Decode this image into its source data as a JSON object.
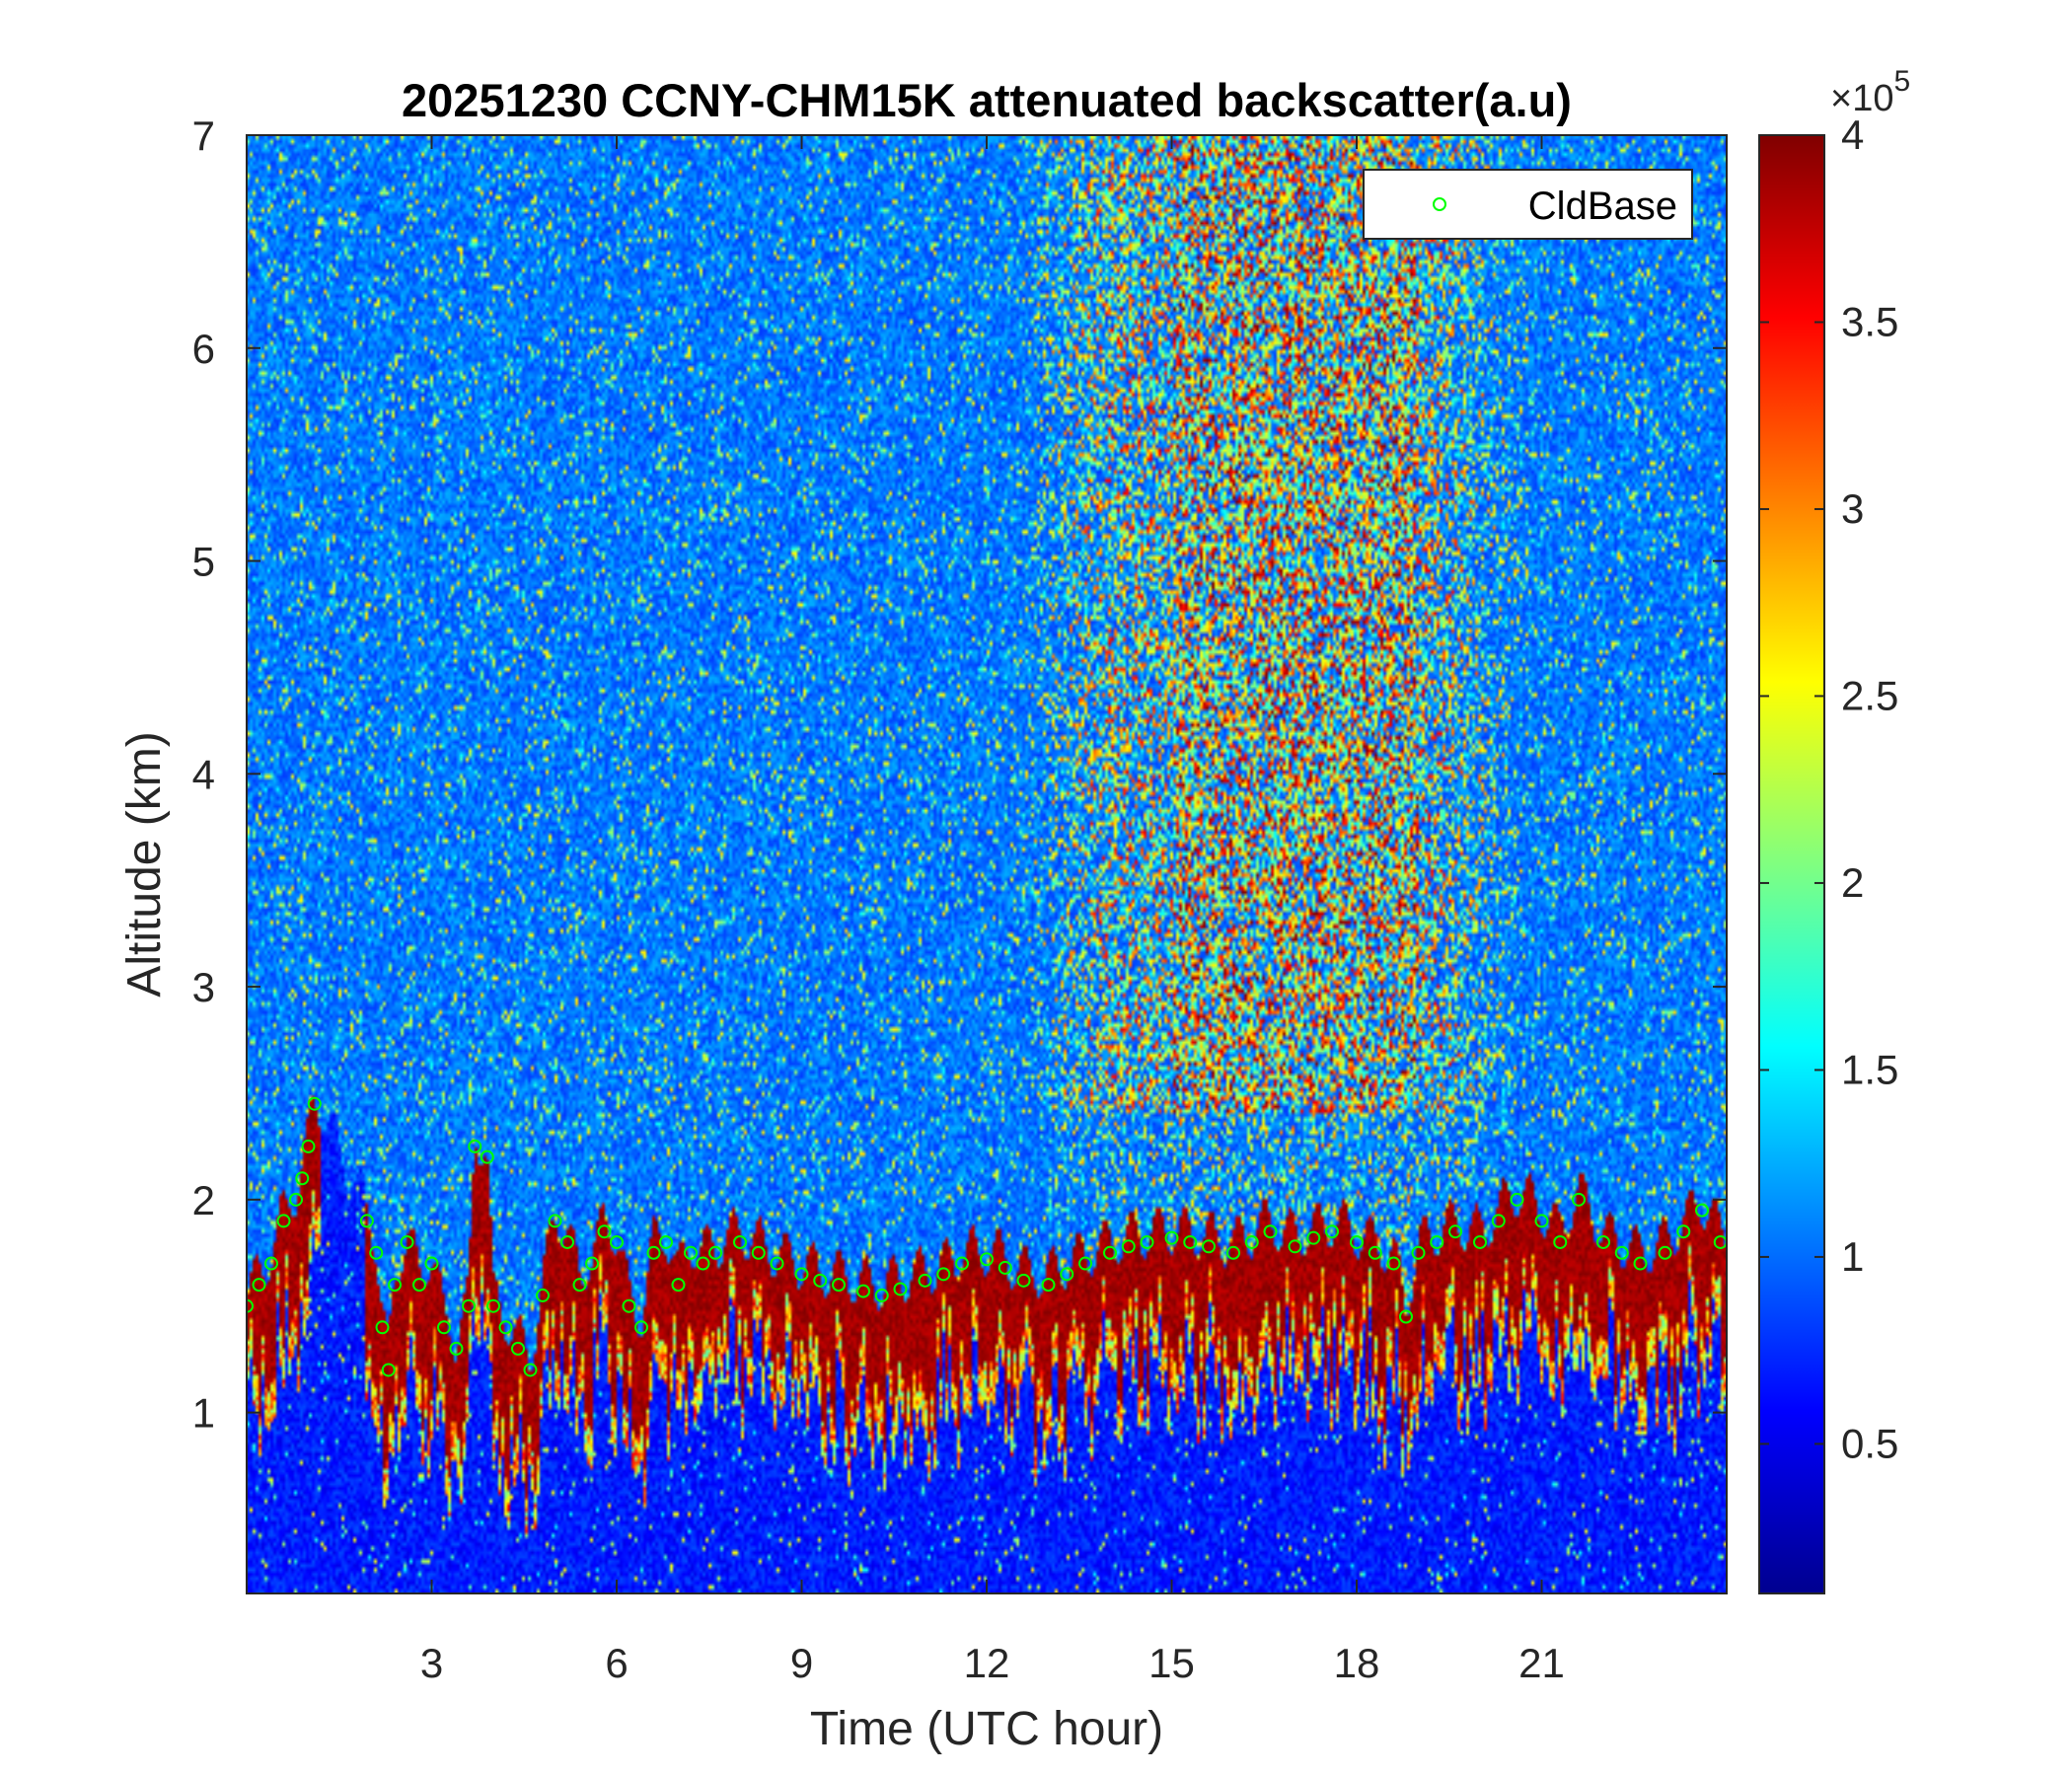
{
  "chart_data": {
    "type": "heatmap",
    "title": "20251230 CCNY-CHM15K attenuated backscatter(a.u)",
    "xlabel": "Time (UTC hour)",
    "ylabel": "Altitude (km)",
    "xlim": [
      0,
      24
    ],
    "ylim": [
      0.15,
      7
    ],
    "xticks": [
      3,
      6,
      9,
      12,
      15,
      18,
      21
    ],
    "yticks": [
      1,
      2,
      3,
      4,
      5,
      6,
      7
    ],
    "colormap": "jet",
    "colorbar": {
      "range": [
        10000,
        400000
      ],
      "ticks": [
        0.5,
        1,
        1.5,
        2,
        2.5,
        3,
        3.5,
        4
      ],
      "multiplier_base": "×10",
      "multiplier_exponent": "5"
    },
    "legend": {
      "position": "top-right",
      "entries": [
        "CldBase"
      ]
    },
    "series": [
      {
        "name": "CldBase",
        "marker": "circle-open",
        "color": "#00ff00",
        "points": [
          [
            0.0,
            1.5
          ],
          [
            0.2,
            1.6
          ],
          [
            0.4,
            1.7
          ],
          [
            0.6,
            1.9
          ],
          [
            0.8,
            2.0
          ],
          [
            0.9,
            2.1
          ],
          [
            1.0,
            2.25
          ],
          [
            1.1,
            2.45
          ],
          [
            1.95,
            1.9
          ],
          [
            2.1,
            1.75
          ],
          [
            2.2,
            1.4
          ],
          [
            2.3,
            1.2
          ],
          [
            2.4,
            1.6
          ],
          [
            2.6,
            1.8
          ],
          [
            2.8,
            1.6
          ],
          [
            3.0,
            1.7
          ],
          [
            3.2,
            1.4
          ],
          [
            3.4,
            1.3
          ],
          [
            3.6,
            1.5
          ],
          [
            3.7,
            2.25
          ],
          [
            3.9,
            2.2
          ],
          [
            4.0,
            1.5
          ],
          [
            4.2,
            1.4
          ],
          [
            4.4,
            1.3
          ],
          [
            4.6,
            1.2
          ],
          [
            4.8,
            1.55
          ],
          [
            5.0,
            1.9
          ],
          [
            5.2,
            1.8
          ],
          [
            5.4,
            1.6
          ],
          [
            5.6,
            1.7
          ],
          [
            5.8,
            1.85
          ],
          [
            6.0,
            1.8
          ],
          [
            6.2,
            1.5
          ],
          [
            6.4,
            1.4
          ],
          [
            6.6,
            1.75
          ],
          [
            6.8,
            1.8
          ],
          [
            7.0,
            1.6
          ],
          [
            7.2,
            1.75
          ],
          [
            7.4,
            1.7
          ],
          [
            7.6,
            1.75
          ],
          [
            8.0,
            1.8
          ],
          [
            8.3,
            1.75
          ],
          [
            8.6,
            1.7
          ],
          [
            9.0,
            1.65
          ],
          [
            9.3,
            1.62
          ],
          [
            9.6,
            1.6
          ],
          [
            10.0,
            1.57
          ],
          [
            10.3,
            1.55
          ],
          [
            10.6,
            1.58
          ],
          [
            11.0,
            1.62
          ],
          [
            11.3,
            1.65
          ],
          [
            11.6,
            1.7
          ],
          [
            12.0,
            1.72
          ],
          [
            12.3,
            1.68
          ],
          [
            12.6,
            1.62
          ],
          [
            13.0,
            1.6
          ],
          [
            13.3,
            1.65
          ],
          [
            13.6,
            1.7
          ],
          [
            14.0,
            1.75
          ],
          [
            14.3,
            1.78
          ],
          [
            14.6,
            1.8
          ],
          [
            15.0,
            1.82
          ],
          [
            15.3,
            1.8
          ],
          [
            15.6,
            1.78
          ],
          [
            16.0,
            1.75
          ],
          [
            16.3,
            1.8
          ],
          [
            16.6,
            1.85
          ],
          [
            17.0,
            1.78
          ],
          [
            17.3,
            1.82
          ],
          [
            17.6,
            1.85
          ],
          [
            18.0,
            1.8
          ],
          [
            18.3,
            1.75
          ],
          [
            18.6,
            1.7
          ],
          [
            18.8,
            1.45
          ],
          [
            19.0,
            1.75
          ],
          [
            19.3,
            1.8
          ],
          [
            19.6,
            1.85
          ],
          [
            20.0,
            1.8
          ],
          [
            20.3,
            1.9
          ],
          [
            20.6,
            2.0
          ],
          [
            21.0,
            1.9
          ],
          [
            21.3,
            1.8
          ],
          [
            21.6,
            2.0
          ],
          [
            22.0,
            1.8
          ],
          [
            22.3,
            1.75
          ],
          [
            22.6,
            1.7
          ],
          [
            23.0,
            1.75
          ],
          [
            23.3,
            1.85
          ],
          [
            23.6,
            1.95
          ],
          [
            23.9,
            1.8
          ]
        ]
      }
    ]
  }
}
